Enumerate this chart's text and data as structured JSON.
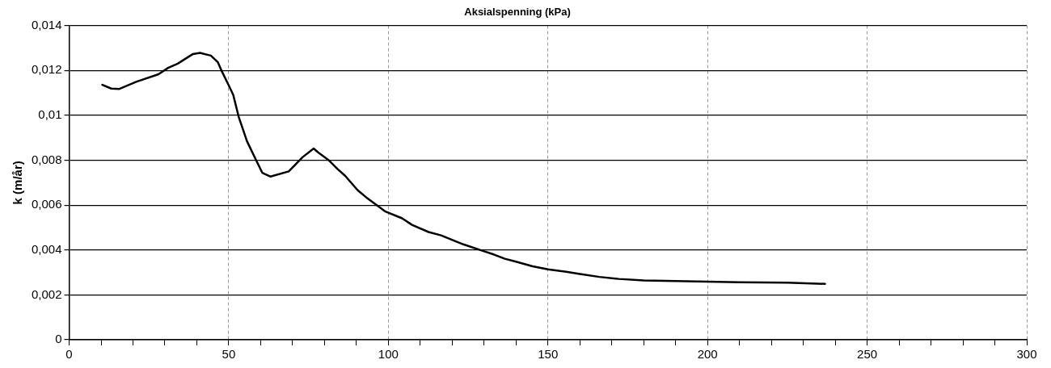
{
  "chart_data": {
    "type": "line",
    "title": "Aksialspenning (kPa)",
    "ylabel": "k (m/år)",
    "series": [
      {
        "color": "#000000",
        "x": [
          10.4,
          13.2,
          15.6,
          21.0,
          28.0,
          31.0,
          34.0,
          38.8,
          41.0,
          44.4,
          46.6,
          47.9,
          49.9,
          51.4,
          53.1,
          55.7,
          58.3,
          60.5,
          63.1,
          68.8,
          73.1,
          76.6,
          77.9,
          81.3,
          84.0,
          86.5,
          90.4,
          93.1,
          99.1,
          104.3,
          107.4,
          112.6,
          116.5,
          123.5,
          129.6,
          133.0,
          136.5,
          140.0,
          145.2,
          150.0,
          155.7,
          160.0,
          166.1,
          172.2,
          180.0,
          200.0,
          210.0,
          225.0,
          236.8
        ],
        "values": [
          0.01136,
          0.01119,
          0.01117,
          0.01149,
          0.01183,
          0.01211,
          0.0123,
          0.01273,
          0.01278,
          0.01266,
          0.01236,
          0.01194,
          0.01136,
          0.01091,
          0.00994,
          0.00885,
          0.00808,
          0.00744,
          0.00727,
          0.0075,
          0.00813,
          0.00852,
          0.00836,
          0.008,
          0.00762,
          0.0073,
          0.00666,
          0.00634,
          0.00571,
          0.00541,
          0.00512,
          0.0048,
          0.00465,
          0.00425,
          0.00396,
          0.0038,
          0.00361,
          0.00348,
          0.00327,
          0.00314,
          0.00303,
          0.00293,
          0.0028,
          0.00271,
          0.00264,
          0.00259,
          0.00256,
          0.00254,
          0.00249
        ]
      }
    ],
    "xlim": [
      0,
      300
    ],
    "xticks": [
      0,
      {
        "value": 10,
        "label": null
      },
      {
        "value": 20,
        "label": null
      },
      {
        "value": 30,
        "label": null
      },
      {
        "value": 40,
        "label": null
      },
      50,
      {
        "value": 60,
        "label": null
      },
      {
        "value": 70,
        "label": null
      },
      {
        "value": 80,
        "label": null
      },
      {
        "value": 90,
        "label": null
      },
      100,
      {
        "value": 110,
        "label": null
      },
      {
        "value": 120,
        "label": null
      },
      {
        "value": 130,
        "label": null
      },
      {
        "value": 140,
        "label": null
      },
      150,
      {
        "value": 160,
        "label": null
      },
      {
        "value": 170,
        "label": null
      },
      {
        "value": 180,
        "label": null
      },
      {
        "value": 190,
        "label": null
      },
      200,
      {
        "value": 210,
        "label": null
      },
      {
        "value": 220,
        "label": null
      },
      {
        "value": 230,
        "label": null
      },
      {
        "value": 240,
        "label": null
      },
      250,
      {
        "value": 260,
        "label": null
      },
      {
        "value": 270,
        "label": null
      },
      {
        "value": 280,
        "label": null
      },
      {
        "value": 290,
        "label": null
      },
      300
    ],
    "ylim": [
      0,
      0.014
    ],
    "yticks": [
      0,
      {
        "value": 0.002,
        "label": "0,002"
      },
      {
        "value": 0.004,
        "label": "0,004"
      },
      {
        "value": 0.006,
        "label": "0,006"
      },
      {
        "value": 0.008,
        "label": "0,008"
      },
      {
        "value": 0.01,
        "label": "0,01"
      },
      {
        "value": 0.012,
        "label": "0,012"
      },
      {
        "value": 0.014,
        "label": "0,014"
      }
    ],
    "grid": true,
    "legend": false,
    "marker": "none",
    "line_style": "solid"
  }
}
